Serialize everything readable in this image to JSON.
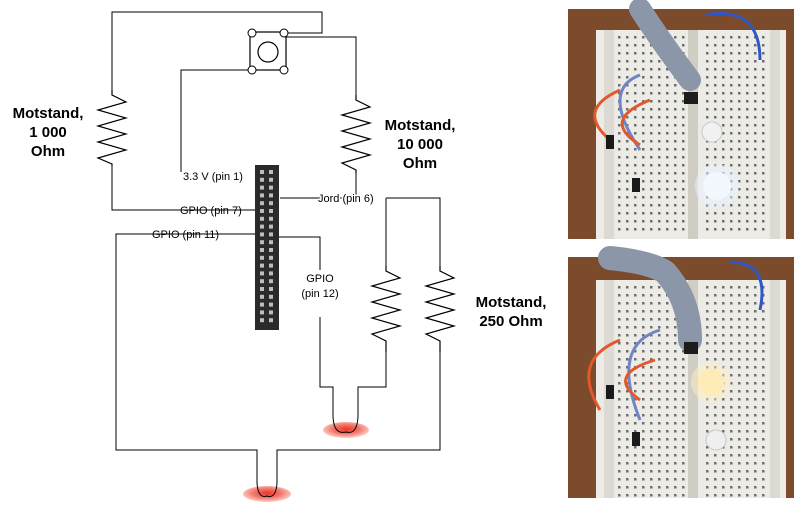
{
  "labels": {
    "r1_line1": "Motstand,",
    "r1_line2": "1 000",
    "r1_line3": "Ohm",
    "r2_line1": "Motstand,",
    "r2_line2": "10 000",
    "r2_line3": "Ohm",
    "r3_line1": "Motstand,",
    "r3_line2": "250 Ohm",
    "pin_33v": "3.3 V (pin 1)",
    "pin_gpio7": "GPIO (pin 7)",
    "pin_gpio11": "GPIO (pin 11)",
    "pin_jord": "Jord (pin 6)",
    "pin_gpio12_line1": "GPIO",
    "pin_gpio12_line2": "(pin 12)"
  },
  "colors": {
    "led_red": "#e8352a",
    "wire": "#000000"
  },
  "photos": [
    {
      "name": "breadboard-photo-button-pressed",
      "led_state": "white LED lit"
    },
    {
      "name": "breadboard-photo-button-released",
      "led_state": "yellow LED lit"
    }
  ]
}
